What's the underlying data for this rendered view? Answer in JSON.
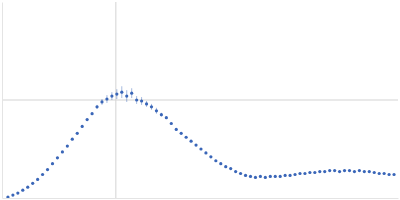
{
  "chart_data": {
    "type": "scatter",
    "tick_labels": false,
    "grid": true,
    "xlim": [
      0,
      400
    ],
    "ylim": [
      0,
      200
    ],
    "xticks": [
      115
    ],
    "yticks": [
      100
    ],
    "series": [
      {
        "color": "#3a66b8",
        "marker": "circle",
        "x": [
          6,
          11,
          16,
          21,
          26,
          31,
          36,
          41,
          46,
          51,
          56,
          61,
          66,
          71,
          76,
          81,
          86,
          91,
          96,
          101,
          106,
          111,
          116,
          121,
          126,
          131,
          136,
          141,
          146,
          151,
          156,
          161,
          166,
          171,
          176,
          181,
          186,
          191,
          196,
          201,
          206,
          211,
          216,
          221,
          226,
          231,
          236,
          241,
          246,
          251,
          256,
          261,
          266,
          271,
          276,
          281,
          286,
          291,
          296,
          301,
          306,
          311,
          316,
          321,
          326,
          331,
          336,
          341,
          346,
          351,
          356,
          361,
          366,
          371,
          376,
          381,
          386,
          391,
          396
        ],
        "values": [
          1,
          3,
          5,
          8,
          11,
          15,
          19,
          24,
          29,
          35,
          41,
          47,
          53,
          60,
          66,
          73,
          80,
          86,
          93,
          98,
          101,
          104,
          106,
          108,
          104,
          107,
          100,
          99,
          96,
          93,
          89,
          85,
          82,
          76,
          70,
          66,
          62,
          58,
          54,
          50,
          46,
          42,
          38,
          35,
          32,
          30,
          27,
          25,
          23,
          22,
          21,
          22,
          21,
          22,
          22,
          22,
          23,
          23,
          24,
          25,
          25,
          26,
          26,
          27,
          27,
          28,
          28,
          27,
          28,
          28,
          27,
          28,
          27,
          27,
          26,
          25,
          25,
          24,
          24
        ],
        "errors": [
          1,
          1,
          1,
          1,
          1,
          1,
          1,
          1,
          1,
          1,
          1,
          1,
          1,
          1,
          1,
          1,
          1,
          1,
          2,
          3,
          4,
          4,
          5,
          6,
          6,
          5,
          4,
          4,
          3,
          3,
          3,
          2,
          1,
          1,
          1,
          1,
          1,
          1,
          1,
          1,
          1,
          1,
          1,
          1,
          1,
          1,
          1,
          1,
          1,
          1,
          1,
          1,
          1,
          1,
          1,
          1,
          1,
          1,
          1,
          1,
          1,
          1,
          1,
          1,
          1,
          1,
          1,
          1,
          1,
          1,
          1,
          1,
          1,
          1,
          1,
          1,
          1,
          1,
          1
        ]
      }
    ]
  }
}
